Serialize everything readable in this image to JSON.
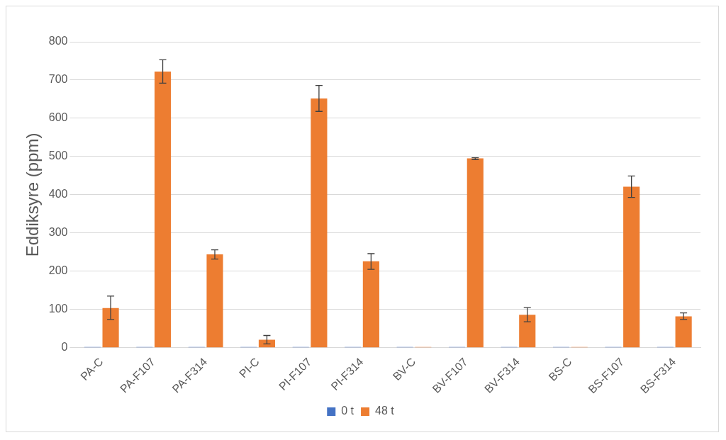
{
  "chart_data": {
    "type": "bar",
    "ylabel": "Eddiksyre (ppm)",
    "categories": [
      "PA-C",
      "PA-F107",
      "PA-F314",
      "PI-C",
      "PI-F107",
      "PI-F314",
      "BV-C",
      "BV-F107",
      "BV-F314",
      "BS-C",
      "BS-F107",
      "BS-F314"
    ],
    "series": [
      {
        "name": "0 t",
        "color": "#4472c4",
        "values": [
          0,
          0,
          0,
          0,
          0,
          0,
          0,
          0,
          0,
          0,
          0,
          0
        ]
      },
      {
        "name": "48 t",
        "color": "#ed7d31",
        "values": [
          104,
          722,
          244,
          21,
          652,
          226,
          0,
          495,
          86,
          0,
          421,
          82
        ],
        "errors": [
          [
            74,
            135
          ],
          [
            692,
            753
          ],
          [
            232,
            256
          ],
          [
            10,
            32
          ],
          [
            618,
            686
          ],
          [
            205,
            246
          ],
          null,
          [
            492,
            497
          ],
          [
            68,
            105
          ],
          null,
          [
            393,
            449
          ],
          [
            74,
            91
          ]
        ]
      }
    ],
    "ylim": [
      0,
      800
    ],
    "yticks": [
      0,
      100,
      200,
      300,
      400,
      500,
      600,
      700,
      800
    ],
    "grid": "y",
    "legend": "bottom"
  }
}
